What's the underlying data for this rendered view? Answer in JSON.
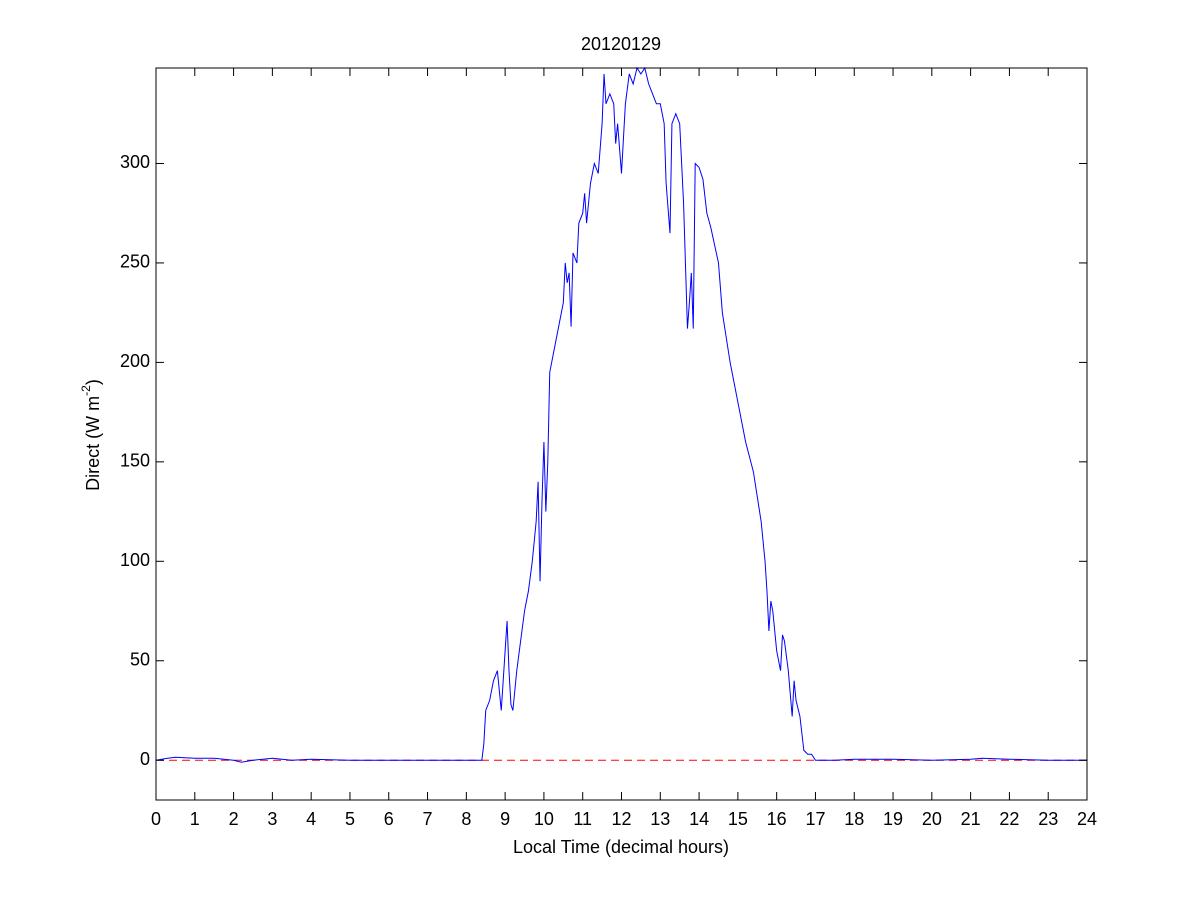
{
  "chart_data": {
    "type": "line",
    "title": "20120129",
    "xlabel": "Local Time (decimal hours)",
    "ylabel": [
      "Direct (W m",
      "-2",
      ")"
    ],
    "xlim": [
      0,
      24
    ],
    "ylim": [
      -20,
      348
    ],
    "xticks": [
      0,
      1,
      2,
      3,
      4,
      5,
      6,
      7,
      8,
      9,
      10,
      11,
      12,
      13,
      14,
      15,
      16,
      17,
      18,
      19,
      20,
      21,
      22,
      23,
      24
    ],
    "yticks": [
      0,
      50,
      100,
      150,
      200,
      250,
      300
    ],
    "grid": false,
    "reference_line": {
      "value": 0,
      "color": "#ff0000",
      "dashed": true
    },
    "series": [
      {
        "color": "#0000ff",
        "x": [
          0,
          0.3,
          0.5,
          1,
          1.5,
          2,
          2.2,
          2.5,
          3,
          3.5,
          4,
          5,
          6,
          7,
          8,
          8.4,
          8.45,
          8.5,
          8.6,
          8.7,
          8.8,
          8.85,
          8.9,
          9,
          9.05,
          9.1,
          9.15,
          9.2,
          9.3,
          9.4,
          9.5,
          9.6,
          9.7,
          9.8,
          9.85,
          9.9,
          9.95,
          10,
          10.05,
          10.1,
          10.15,
          10.3,
          10.5,
          10.55,
          10.6,
          10.65,
          10.7,
          10.75,
          10.85,
          10.9,
          11,
          11.05,
          11.1,
          11.2,
          11.3,
          11.4,
          11.5,
          11.55,
          11.6,
          11.7,
          11.8,
          11.85,
          11.9,
          12,
          12.1,
          12.2,
          12.3,
          12.4,
          12.5,
          12.6,
          12.7,
          12.8,
          12.9,
          13,
          13.1,
          13.15,
          13.25,
          13.3,
          13.4,
          13.5,
          13.6,
          13.7,
          13.75,
          13.8,
          13.85,
          13.9,
          14,
          14.1,
          14.2,
          14.3,
          14.5,
          14.6,
          14.8,
          15,
          15.2,
          15.4,
          15.6,
          15.7,
          15.75,
          15.8,
          15.85,
          15.9,
          16,
          16.1,
          16.15,
          16.2,
          16.3,
          16.4,
          16.45,
          16.5,
          16.6,
          16.7,
          16.8,
          16.9,
          17,
          17.5,
          18,
          19,
          20,
          21,
          21.3,
          22,
          23,
          24
        ],
        "values": [
          0,
          1,
          1.5,
          1,
          1,
          0,
          -1,
          0,
          1,
          0,
          0.5,
          0,
          0,
          0,
          0,
          0,
          8,
          25,
          30,
          40,
          45,
          35,
          25,
          55,
          70,
          45,
          28,
          25,
          45,
          60,
          75,
          85,
          100,
          120,
          140,
          90,
          130,
          160,
          125,
          150,
          195,
          210,
          230,
          250,
          240,
          245,
          218,
          255,
          250,
          270,
          275,
          285,
          270,
          290,
          300,
          295,
          320,
          345,
          330,
          335,
          330,
          310,
          320,
          295,
          330,
          345,
          340,
          348,
          345,
          348,
          340,
          335,
          330,
          330,
          320,
          290,
          265,
          320,
          325,
          320,
          280,
          217,
          230,
          245,
          217,
          300,
          298,
          292,
          275,
          268,
          250,
          225,
          200,
          180,
          160,
          145,
          120,
          100,
          85,
          65,
          80,
          75,
          55,
          45,
          63,
          60,
          45,
          22,
          40,
          30,
          22,
          5,
          3,
          3,
          0,
          0,
          0.5,
          0.5,
          0,
          0.5,
          1,
          0.5,
          0,
          0
        ]
      }
    ]
  }
}
